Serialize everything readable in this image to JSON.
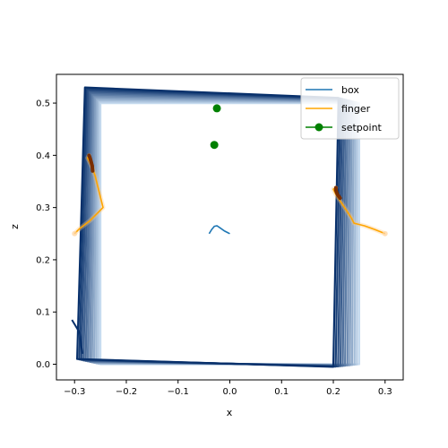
{
  "chart_data": {
    "type": "line",
    "title": "",
    "xlabel": "x",
    "ylabel": "z",
    "xlim": [
      -0.335,
      0.335
    ],
    "ylim": [
      -0.03,
      0.555
    ],
    "xticks": [
      -0.3,
      -0.2,
      -0.1,
      0.0,
      0.1,
      0.2,
      0.3
    ],
    "xtick_labels": [
      "−0.3",
      "−0.2",
      "−0.1",
      "0.0",
      "0.1",
      "0.2",
      "0.3"
    ],
    "yticks": [
      0.0,
      0.1,
      0.2,
      0.3,
      0.4,
      0.5
    ],
    "ytick_labels": [
      "0.0",
      "0.1",
      "0.2",
      "0.3",
      "0.4",
      "0.5"
    ],
    "grid": false,
    "legend": {
      "position": "top-right",
      "entries": [
        {
          "label": "box",
          "color": "#1f77b4",
          "style": "line"
        },
        {
          "label": "finger",
          "color": "#ffa500",
          "style": "line"
        },
        {
          "label": "setpoint",
          "color": "#008000",
          "style": "line-marker"
        }
      ]
    },
    "box_frames": {
      "frame_count": 12,
      "start_corners": [
        [
          -0.25,
          0.5
        ],
        [
          0.25,
          0.5
        ],
        [
          0.25,
          0.0
        ],
        [
          -0.25,
          0.0
        ]
      ],
      "end_corners": [
        [
          -0.28,
          0.53
        ],
        [
          0.21,
          0.51
        ],
        [
          0.2,
          -0.005
        ],
        [
          -0.295,
          0.01
        ]
      ],
      "start_color": "#c6dbef",
      "end_color": "#08306b"
    },
    "box_frames_bottom_left_bump": [
      [
        -0.305,
        0.085
      ],
      [
        -0.29,
        0.06
      ],
      [
        -0.285,
        0.02
      ]
    ],
    "series": [
      {
        "name": "box",
        "color": "#1f77b4",
        "x": [
          0.0,
          -0.01,
          -0.02,
          -0.025,
          -0.03,
          -0.035,
          -0.04
        ],
        "y": [
          0.25,
          0.255,
          0.262,
          0.265,
          0.264,
          0.258,
          0.25
        ]
      },
      {
        "name": "finger",
        "color": "#ffa500",
        "trajectories": [
          {
            "x": [
              -0.3,
              -0.29,
              -0.27,
              -0.255,
              -0.245,
              -0.25,
              -0.255,
              -0.26,
              -0.265,
              -0.27,
              -0.275,
              -0.272
            ],
            "y": [
              0.25,
              0.26,
              0.275,
              0.29,
              0.3,
              0.32,
              0.34,
              0.36,
              0.375,
              0.385,
              0.395,
              0.4
            ]
          },
          {
            "x": [
              0.3,
              0.28,
              0.26,
              0.24,
              0.235,
              0.225,
              0.215,
              0.205,
              0.2,
              0.205
            ],
            "y": [
              0.25,
              0.258,
              0.265,
              0.27,
              0.28,
              0.295,
              0.31,
              0.325,
              0.335,
              0.338
            ]
          }
        ],
        "trail_segments": [
          {
            "x": [
              -0.272,
              -0.27,
              -0.266,
              -0.265
            ],
            "y": [
              0.4,
              0.395,
              0.38,
              0.37
            ]
          },
          {
            "x": [
              0.205,
              0.205,
              0.208,
              0.213
            ],
            "y": [
              0.338,
              0.333,
              0.325,
              0.318
            ]
          }
        ]
      },
      {
        "name": "setpoint",
        "color": "#008000",
        "x": [
          -0.03,
          -0.025
        ],
        "y": [
          0.42,
          0.49
        ]
      }
    ]
  }
}
